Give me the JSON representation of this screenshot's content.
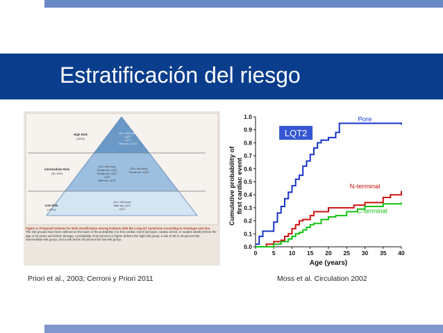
{
  "slide": {
    "title": "Estratificación del riesgo",
    "caption_left": "Priori et al., 2003; Cerroni y Priori 2011",
    "caption_right": "Moss et al. Circulation 2002",
    "colors": {
      "title_bar": "#0a3d8c",
      "top_bar": "#6b89c4",
      "bottom_bar": "#7f97cc"
    }
  },
  "pyramid": {
    "tiers": [
      {
        "risk": "High Risk",
        "range": "(>50%)",
        "criteria": [
          "QTc ≥ 500 msec",
          "LQT1",
          "LQT2",
          "Male sex, LQT3"
        ]
      },
      {
        "risk": "Intermediate Risk",
        "range": "(30–49%)",
        "criteria_left": [
          "QTc ≥ 500 msec",
          "Female sex, LQT3",
          "Female sex, LQT2",
          "LQT3",
          "Male sex, LQT3"
        ],
        "criteria_right": [
          "QTc ≥ 500 msec",
          "Female sex, LQT3"
        ]
      },
      {
        "risk": "Low Risk",
        "range": "(<30%)",
        "criteria": [
          "QTc < 500 msec",
          "Male sex, LQT2",
          "LQT1"
        ]
      }
    ],
    "figure_caption": "Figure 4. Proposed Scheme for Risk Stratification among Patients with the Long-QT Syndrome According to Genotype and Sex.",
    "figure_text": "The risk groups have been defined on the basis of the probability of a first cardiac event (syncope, cardiac arrest, or sudden death) before the age of 40 years and before therapy. A probability of 50 percent or higher defines the high-risk group, a risk of 30 to 49 percent the intermediate-risk group, and a risk below 30 percent the low-risk group."
  },
  "chart_data": {
    "type": "line",
    "badge": "LQT2",
    "xlabel": "Age (years)",
    "ylabel": "Cumulative probability of first cardiac event",
    "xlim": [
      0,
      40
    ],
    "ylim": [
      0,
      1.0
    ],
    "xticks": [
      0,
      5,
      10,
      15,
      20,
      25,
      30,
      35,
      40
    ],
    "yticks": [
      0.0,
      0.1,
      0.2,
      0.3,
      0.4,
      0.5,
      0.6,
      0.7,
      0.8,
      0.9,
      1.0
    ],
    "grid": false,
    "series": [
      {
        "name": "Pore",
        "color": "#1533c9",
        "x": [
          0,
          1,
          2,
          3,
          5,
          6,
          7,
          8,
          9,
          10,
          11,
          12,
          13,
          14,
          15,
          16,
          17,
          18,
          20,
          22,
          23,
          25,
          40
        ],
        "y": [
          0.02,
          0.08,
          0.12,
          0.12,
          0.19,
          0.26,
          0.31,
          0.37,
          0.42,
          0.47,
          0.52,
          0.55,
          0.62,
          0.66,
          0.71,
          0.76,
          0.8,
          0.82,
          0.84,
          0.88,
          0.95,
          0.95,
          0.94
        ]
      },
      {
        "name": "N-terminal",
        "color": "#cc1111",
        "x": [
          0,
          3,
          5,
          7,
          8,
          9,
          10,
          11,
          12,
          13,
          15,
          16,
          20,
          25,
          27,
          30,
          35,
          37,
          40
        ],
        "y": [
          0.0,
          0.02,
          0.04,
          0.05,
          0.08,
          0.1,
          0.14,
          0.17,
          0.2,
          0.21,
          0.24,
          0.27,
          0.3,
          0.3,
          0.32,
          0.34,
          0.38,
          0.4,
          0.43
        ]
      },
      {
        "name": "C-terminal",
        "color": "#12c212",
        "x": [
          0,
          5,
          7,
          9,
          10,
          11,
          12,
          13,
          14,
          15,
          16,
          18,
          20,
          22,
          25,
          28,
          30,
          33,
          35,
          40
        ],
        "y": [
          0.0,
          0.02,
          0.04,
          0.06,
          0.08,
          0.1,
          0.11,
          0.13,
          0.15,
          0.17,
          0.18,
          0.21,
          0.23,
          0.24,
          0.27,
          0.29,
          0.31,
          0.31,
          0.33,
          0.34
        ]
      }
    ]
  }
}
